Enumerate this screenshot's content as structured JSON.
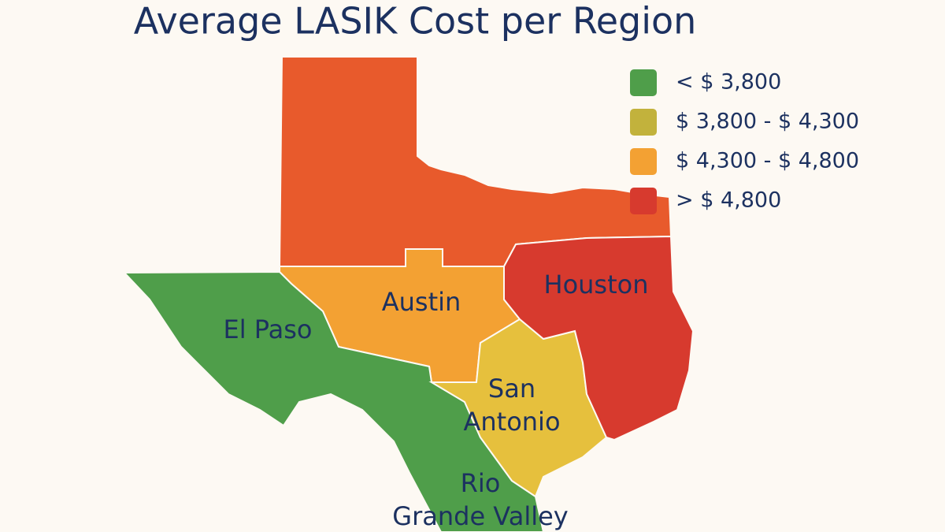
{
  "title": "Average LASIK Cost per Region",
  "legend": {
    "items": [
      {
        "label": "< $ 3,800",
        "color": "#4f9e4a"
      },
      {
        "label": "$ 3,800 - $ 4,300",
        "color": "#c2b23c"
      },
      {
        "label": "$ 4,300 - $ 4,800",
        "color": "#f3a133"
      },
      {
        "label": "> $ 4,800",
        "color": "#d73a2e"
      }
    ]
  },
  "regions": [
    {
      "lines": [
        "Houston"
      ]
    },
    {
      "lines": [
        "Austin"
      ]
    },
    {
      "lines": [
        "El Paso"
      ]
    },
    {
      "lines": [
        "San",
        "Antonio"
      ]
    },
    {
      "lines": [
        "Rio",
        "Grande Valley"
      ]
    }
  ]
}
